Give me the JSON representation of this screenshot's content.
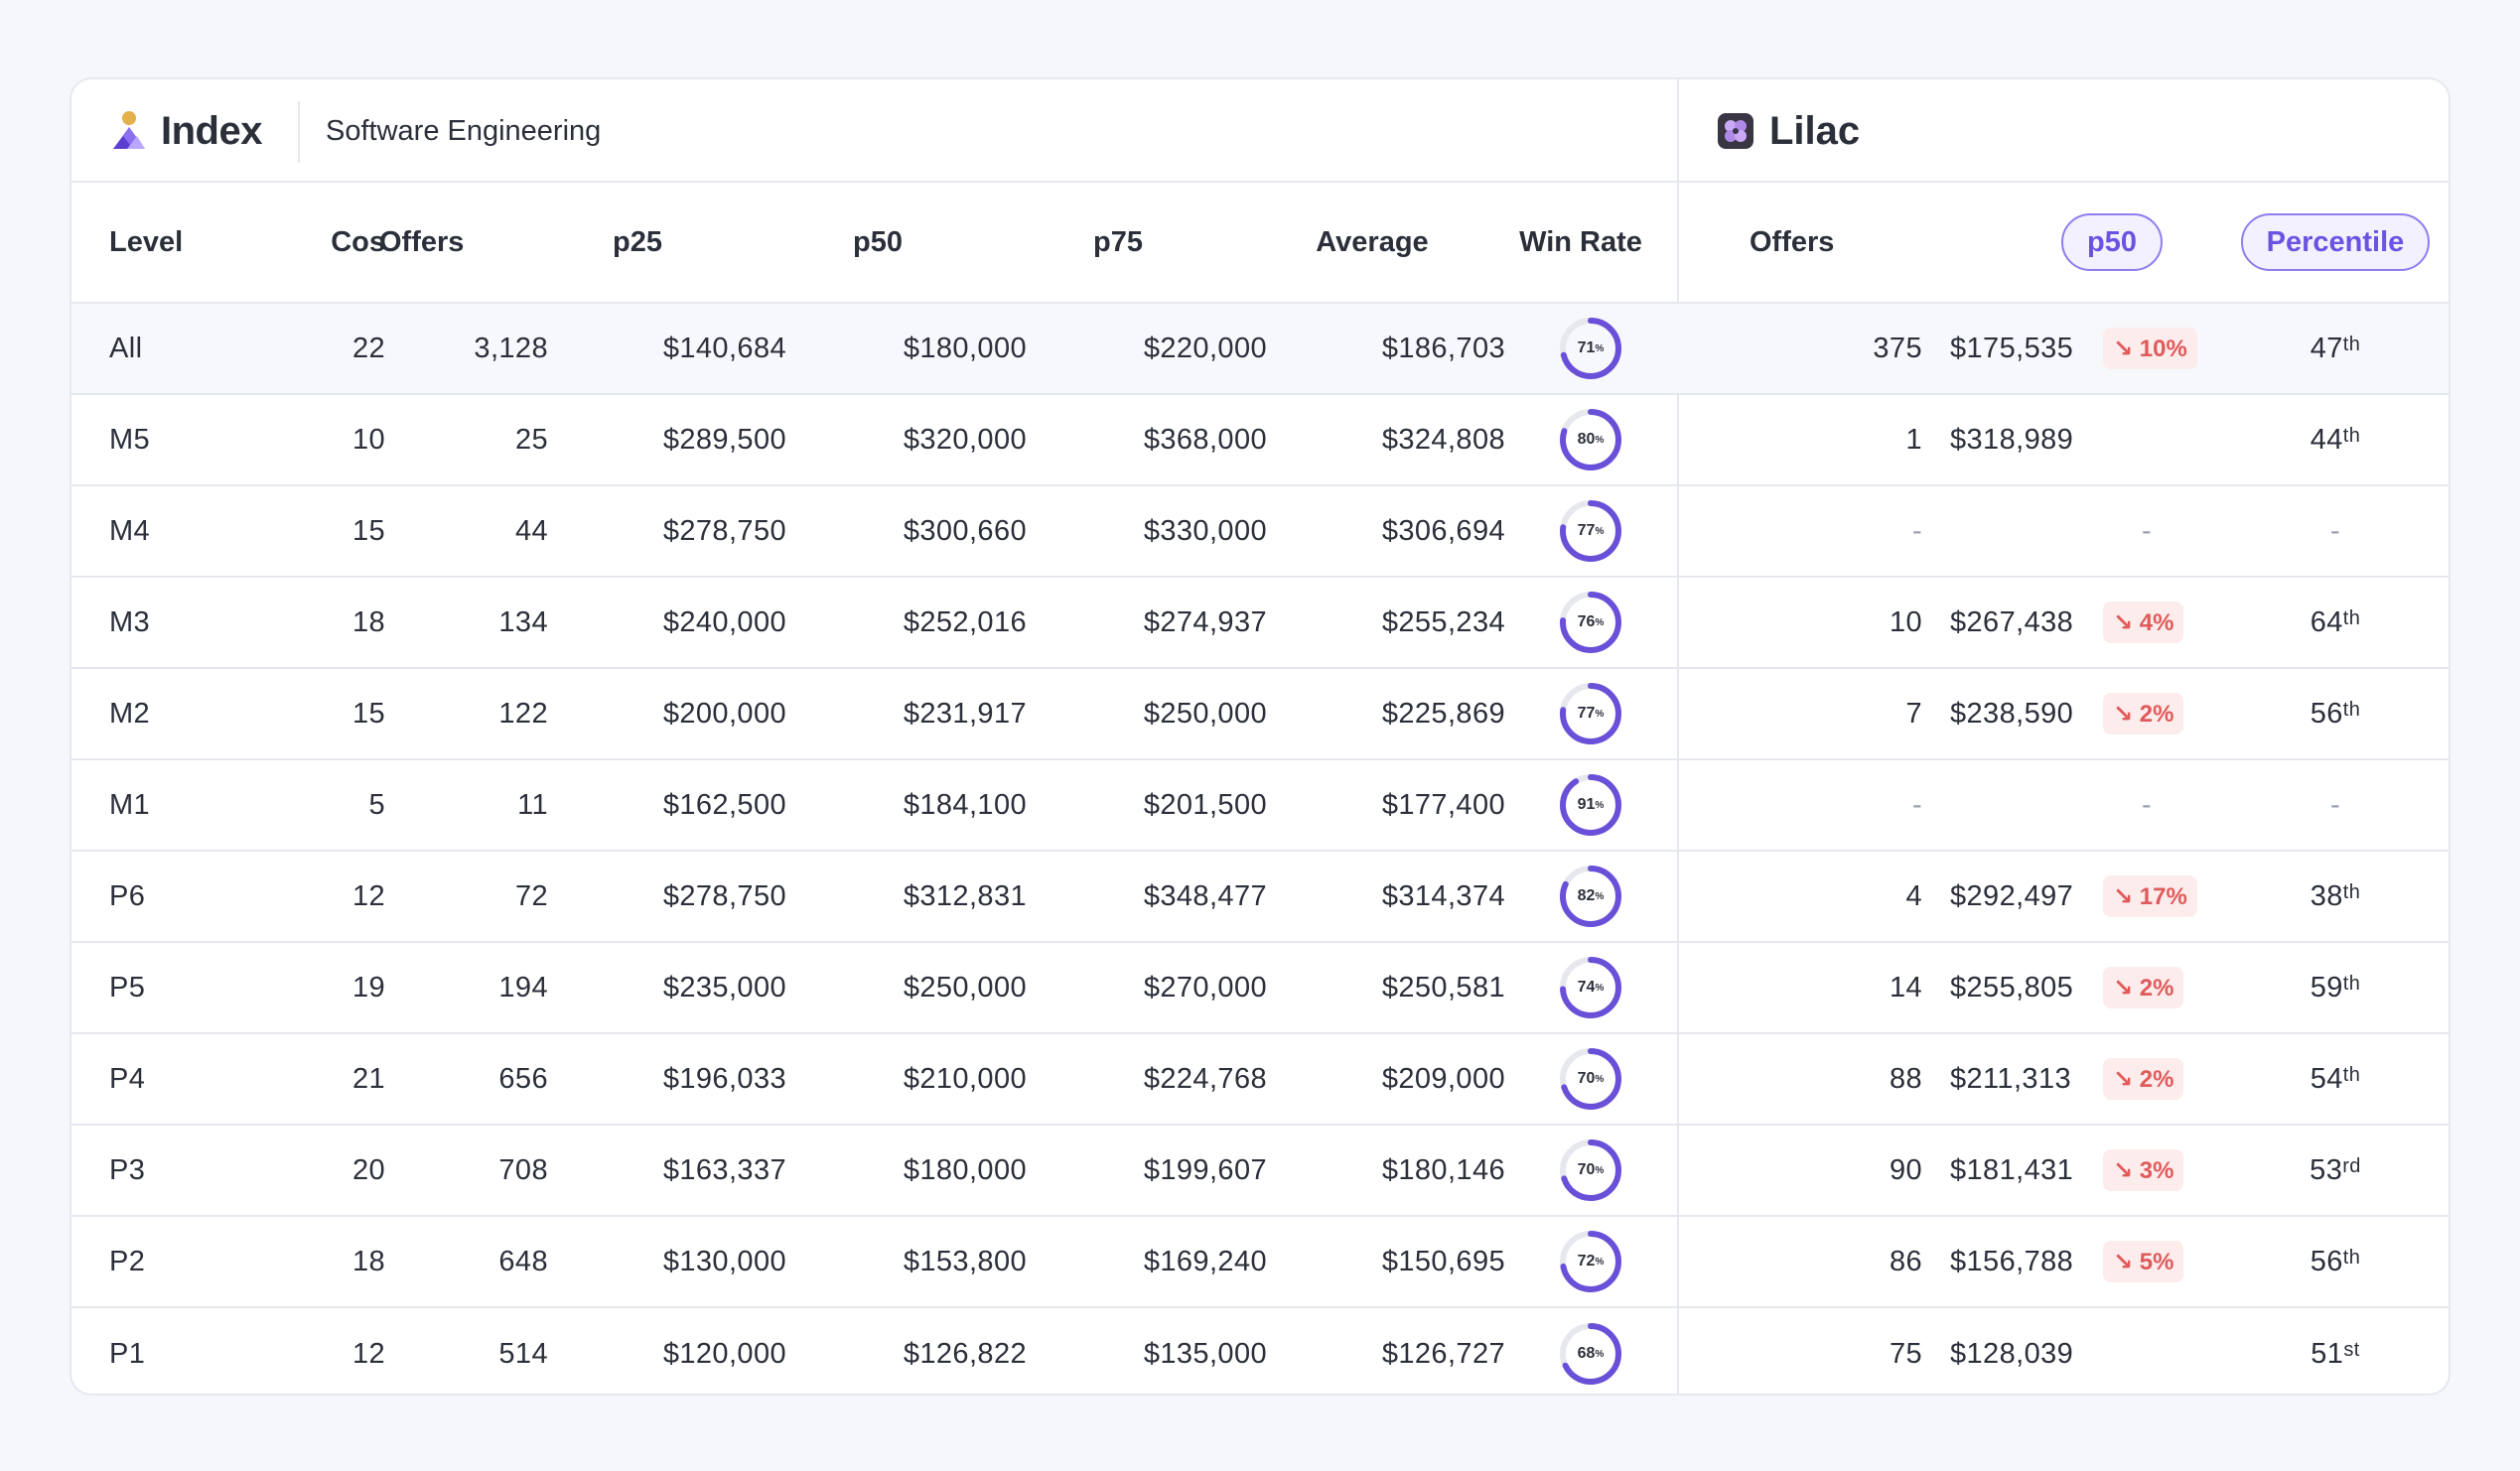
{
  "header": {
    "brand": "Index",
    "department": "Software Engineering",
    "company": "Lilac"
  },
  "columns": {
    "level": "Level",
    "cos": "Cos",
    "offers": "Offers",
    "p25": "p25",
    "p50": "p50",
    "p75": "p75",
    "average": "Average",
    "win_rate": "Win Rate",
    "lilac_offers": "Offers",
    "lilac_p50": "p50",
    "lilac_percentile": "Percentile"
  },
  "colors": {
    "accent": "#6a4fd8",
    "ring_track": "#e7e8ee",
    "delta_bg": "#fdecec",
    "delta_text": "#e05a5a"
  },
  "rows": [
    {
      "level": "All",
      "cos": "22",
      "offers": "3,128",
      "p25": "$140,684",
      "p50": "$180,000",
      "p75": "$220,000",
      "average": "$186,703",
      "win_rate": 71,
      "win_label": "71",
      "l_offers": "375",
      "l_p50": "$175,535",
      "delta": "↘ 10%",
      "pct": "47",
      "suffix": "th"
    },
    {
      "level": "M5",
      "cos": "10",
      "offers": "25",
      "p25": "$289,500",
      "p50": "$320,000",
      "p75": "$368,000",
      "average": "$324,808",
      "win_rate": 80,
      "win_label": "80",
      "l_offers": "1",
      "l_p50": "$318,989",
      "delta": "",
      "pct": "44",
      "suffix": "th"
    },
    {
      "level": "M4",
      "cos": "15",
      "offers": "44",
      "p25": "$278,750",
      "p50": "$300,660",
      "p75": "$330,000",
      "average": "$306,694",
      "win_rate": 77,
      "win_label": "77",
      "l_offers": "-",
      "l_p50": "-",
      "delta": "",
      "pct": "-",
      "suffix": ""
    },
    {
      "level": "M3",
      "cos": "18",
      "offers": "134",
      "p25": "$240,000",
      "p50": "$252,016",
      "p75": "$274,937",
      "average": "$255,234",
      "win_rate": 76,
      "win_label": "76",
      "l_offers": "10",
      "l_p50": "$267,438",
      "delta": "↘ 4%",
      "pct": "64",
      "suffix": "th"
    },
    {
      "level": "M2",
      "cos": "15",
      "offers": "122",
      "p25": "$200,000",
      "p50": "$231,917",
      "p75": "$250,000",
      "average": "$225,869",
      "win_rate": 77,
      "win_label": "77",
      "l_offers": "7",
      "l_p50": "$238,590",
      "delta": "↘ 2%",
      "pct": "56",
      "suffix": "th"
    },
    {
      "level": "M1",
      "cos": "5",
      "offers": "11",
      "p25": "$162,500",
      "p50": "$184,100",
      "p75": "$201,500",
      "average": "$177,400",
      "win_rate": 91,
      "win_label": "91",
      "l_offers": "-",
      "l_p50": "-",
      "delta": "",
      "pct": "-",
      "suffix": ""
    },
    {
      "level": "P6",
      "cos": "12",
      "offers": "72",
      "p25": "$278,750",
      "p50": "$312,831",
      "p75": "$348,477",
      "average": "$314,374",
      "win_rate": 82,
      "win_label": "82",
      "l_offers": "4",
      "l_p50": "$292,497",
      "delta": "↘ 17%",
      "pct": "38",
      "suffix": "th"
    },
    {
      "level": "P5",
      "cos": "19",
      "offers": "194",
      "p25": "$235,000",
      "p50": "$250,000",
      "p75": "$270,000",
      "average": "$250,581",
      "win_rate": 74,
      "win_label": "74",
      "l_offers": "14",
      "l_p50": "$255,805",
      "delta": "↘ 2%",
      "pct": "59",
      "suffix": "th"
    },
    {
      "level": "P4",
      "cos": "21",
      "offers": "656",
      "p25": "$196,033",
      "p50": "$210,000",
      "p75": "$224,768",
      "average": "$209,000",
      "win_rate": 70,
      "win_label": "70",
      "l_offers": "88",
      "l_p50": "$211,313",
      "delta": "↘ 2%",
      "pct": "54",
      "suffix": "th"
    },
    {
      "level": "P3",
      "cos": "20",
      "offers": "708",
      "p25": "$163,337",
      "p50": "$180,000",
      "p75": "$199,607",
      "average": "$180,146",
      "win_rate": 70,
      "win_label": "70",
      "l_offers": "90",
      "l_p50": "$181,431",
      "delta": "↘ 3%",
      "pct": "53",
      "suffix": "rd"
    },
    {
      "level": "P2",
      "cos": "18",
      "offers": "648",
      "p25": "$130,000",
      "p50": "$153,800",
      "p75": "$169,240",
      "average": "$150,695",
      "win_rate": 72,
      "win_label": "72",
      "l_offers": "86",
      "l_p50": "$156,788",
      "delta": "↘ 5%",
      "pct": "56",
      "suffix": "th"
    },
    {
      "level": "P1",
      "cos": "12",
      "offers": "514",
      "p25": "$120,000",
      "p50": "$126,822",
      "p75": "$135,000",
      "average": "$126,727",
      "win_rate": 68,
      "win_label": "68",
      "l_offers": "75",
      "l_p50": "$128,039",
      "delta": "",
      "pct": "51",
      "suffix": "st"
    }
  ]
}
